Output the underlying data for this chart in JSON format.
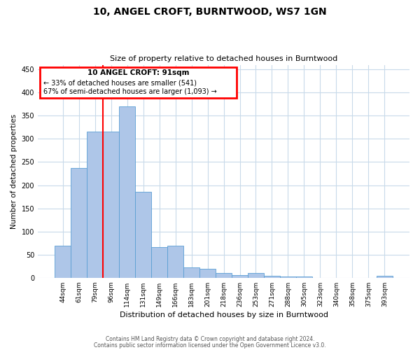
{
  "title": "10, ANGEL CROFT, BURNTWOOD, WS7 1GN",
  "subtitle": "Size of property relative to detached houses in Burntwood",
  "xlabel": "Distribution of detached houses by size in Burntwood",
  "ylabel": "Number of detached properties",
  "footnote1": "Contains HM Land Registry data © Crown copyright and database right 2024.",
  "footnote2": "Contains public sector information licensed under the Open Government Licence v3.0.",
  "annotation_title": "10 ANGEL CROFT: 91sqm",
  "annotation_line1": "← 33% of detached houses are smaller (541)",
  "annotation_line2": "67% of semi-detached houses are larger (1,093) →",
  "bar_labels": [
    "44sqm",
    "61sqm",
    "79sqm",
    "96sqm",
    "114sqm",
    "131sqm",
    "149sqm",
    "166sqm",
    "183sqm",
    "201sqm",
    "218sqm",
    "236sqm",
    "253sqm",
    "271sqm",
    "288sqm",
    "305sqm",
    "323sqm",
    "340sqm",
    "358sqm",
    "375sqm",
    "393sqm"
  ],
  "bar_values": [
    70,
    237,
    315,
    315,
    370,
    185,
    67,
    70,
    22,
    20,
    10,
    6,
    11,
    5,
    2,
    2,
    0,
    0,
    0,
    0,
    4
  ],
  "bar_color": "#aec6e8",
  "bar_edge_color": "#5a9fd4",
  "vline_color": "red",
  "ylim": [
    0,
    460
  ],
  "annotation_box_color": "red",
  "annotation_fill_color": "white",
  "background_color": "white",
  "grid_color": "#c8daea"
}
